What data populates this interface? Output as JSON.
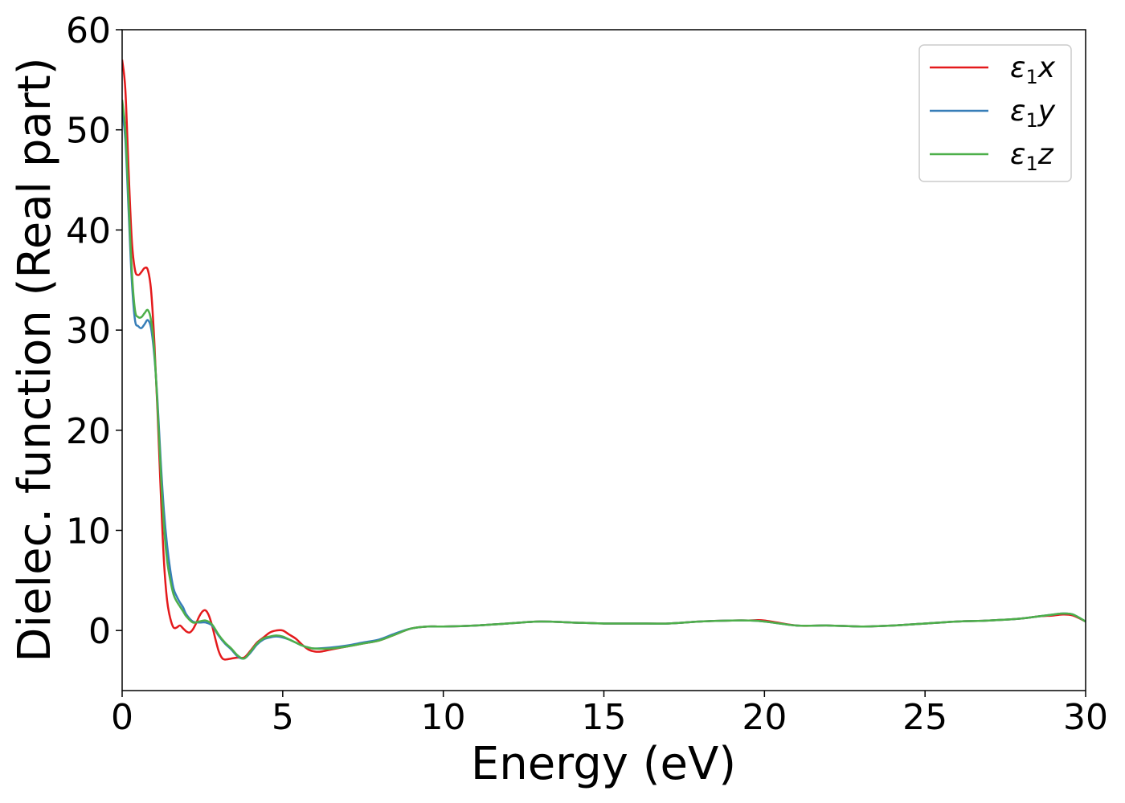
{
  "chart_data": {
    "type": "line",
    "title": "",
    "xlabel": "Energy (eV)",
    "ylabel": "Dielec. function (Real part)",
    "xlim": [
      0,
      30
    ],
    "ylim": [
      -6,
      60
    ],
    "xticks": [
      "0",
      "5",
      "10",
      "15",
      "20",
      "25",
      "30"
    ],
    "yticks": [
      "0",
      "10",
      "20",
      "30",
      "40",
      "50",
      "60"
    ],
    "grid": false,
    "legend_position": "top-right",
    "series": [
      {
        "name": "ε1x",
        "legend_base": "ε",
        "legend_sub": "1",
        "legend_suffix": "x",
        "color": "#e41a1c",
        "x": [
          0,
          0.1,
          0.2,
          0.3,
          0.4,
          0.5,
          0.6,
          0.7,
          0.8,
          0.9,
          1.0,
          1.1,
          1.2,
          1.3,
          1.4,
          1.5,
          1.6,
          1.7,
          1.8,
          1.9,
          2.0,
          2.1,
          2.2,
          2.3,
          2.4,
          2.5,
          2.6,
          2.7,
          2.8,
          2.9,
          3.0,
          3.1,
          3.2,
          3.4,
          3.6,
          3.8,
          4.0,
          4.2,
          4.4,
          4.6,
          4.8,
          5.0,
          5.2,
          5.4,
          5.6,
          5.8,
          6.0,
          6.2,
          6.5,
          7.0,
          7.5,
          8.0,
          8.5,
          9.0,
          9.5,
          10,
          11,
          12,
          13,
          14,
          15,
          16,
          17,
          18,
          19,
          19.5,
          20,
          21,
          22,
          23,
          24,
          25,
          26,
          27,
          28,
          28.5,
          29,
          29.3,
          29.6,
          30
        ],
        "values": [
          57,
          54,
          46,
          39,
          36,
          35.5,
          35.8,
          36.2,
          36,
          34,
          29,
          22,
          14,
          7,
          3,
          1.2,
          0.3,
          0.3,
          0.5,
          0.2,
          -0.1,
          -0.2,
          0.1,
          0.7,
          1.4,
          1.9,
          2.0,
          1.5,
          0.5,
          -0.8,
          -2.0,
          -2.7,
          -2.9,
          -2.8,
          -2.7,
          -2.7,
          -2.0,
          -1.2,
          -0.7,
          -0.2,
          0.0,
          0.0,
          -0.4,
          -0.8,
          -1.4,
          -1.9,
          -2.1,
          -2.1,
          -1.9,
          -1.6,
          -1.3,
          -1.0,
          -0.4,
          0.2,
          0.4,
          0.4,
          0.5,
          0.7,
          0.9,
          0.8,
          0.7,
          0.7,
          0.7,
          0.9,
          1.0,
          1.0,
          1.0,
          0.5,
          0.5,
          0.4,
          0.5,
          0.7,
          0.9,
          1.0,
          1.2,
          1.4,
          1.5,
          1.6,
          1.5,
          0.9
        ]
      },
      {
        "name": "ε1y",
        "legend_base": "ε",
        "legend_sub": "1",
        "legend_suffix": "y",
        "color": "#377eb8",
        "x": [
          0,
          0.1,
          0.2,
          0.3,
          0.4,
          0.5,
          0.6,
          0.7,
          0.8,
          0.9,
          1.0,
          1.1,
          1.2,
          1.3,
          1.4,
          1.5,
          1.6,
          1.7,
          1.8,
          1.9,
          2.0,
          2.2,
          2.4,
          2.6,
          2.8,
          3.0,
          3.2,
          3.4,
          3.6,
          3.8,
          4.0,
          4.2,
          4.4,
          4.6,
          4.8,
          5.0,
          5.2,
          5.4,
          5.6,
          5.8,
          6.0,
          6.5,
          7.0,
          7.5,
          8.0,
          8.5,
          9.0,
          9.5,
          10,
          11,
          12,
          13,
          14,
          15,
          16,
          17,
          18,
          19,
          19.5,
          20,
          21,
          22,
          23,
          24,
          25,
          26,
          27,
          28,
          28.5,
          29,
          29.3,
          29.6,
          30
        ],
        "values": [
          52,
          49,
          42,
          35,
          31,
          30.4,
          30.2,
          30.6,
          31,
          30.2,
          27.5,
          23,
          17,
          12,
          8.5,
          6,
          4.2,
          3.4,
          2.8,
          2.3,
          1.6,
          0.9,
          0.8,
          0.8,
          0.5,
          -0.5,
          -1.3,
          -1.9,
          -2.6,
          -2.8,
          -2.2,
          -1.4,
          -0.9,
          -0.7,
          -0.6,
          -0.7,
          -0.9,
          -1.2,
          -1.5,
          -1.7,
          -1.8,
          -1.7,
          -1.5,
          -1.2,
          -0.9,
          -0.3,
          0.2,
          0.4,
          0.4,
          0.5,
          0.7,
          0.9,
          0.8,
          0.7,
          0.7,
          0.7,
          0.9,
          1.0,
          1.0,
          0.9,
          0.5,
          0.5,
          0.4,
          0.5,
          0.7,
          0.9,
          1.0,
          1.2,
          1.4,
          1.6,
          1.7,
          1.6,
          0.9
        ]
      },
      {
        "name": "ε1z",
        "legend_base": "ε",
        "legend_sub": "1",
        "legend_suffix": "z",
        "color": "#4daf4a",
        "x": [
          0,
          0.1,
          0.2,
          0.3,
          0.4,
          0.5,
          0.6,
          0.7,
          0.8,
          0.9,
          1.0,
          1.1,
          1.2,
          1.3,
          1.4,
          1.5,
          1.6,
          1.7,
          1.8,
          1.9,
          2.0,
          2.2,
          2.4,
          2.6,
          2.8,
          3.0,
          3.2,
          3.4,
          3.6,
          3.8,
          4.0,
          4.2,
          4.4,
          4.6,
          4.8,
          5.0,
          5.2,
          5.4,
          5.6,
          5.8,
          6.0,
          6.5,
          7.0,
          7.5,
          8.0,
          8.5,
          9.0,
          9.5,
          10,
          11,
          12,
          13,
          14,
          15,
          16,
          17,
          18,
          19,
          19.5,
          20,
          21,
          22,
          23,
          24,
          25,
          26,
          27,
          28,
          28.5,
          29,
          29.3,
          29.6,
          30
        ],
        "values": [
          53,
          50,
          43,
          36,
          32,
          31.3,
          31.3,
          31.7,
          32,
          31,
          28,
          22.5,
          16,
          10.5,
          7,
          5,
          3.6,
          2.9,
          2.4,
          1.9,
          1.4,
          0.8,
          0.9,
          1.0,
          0.6,
          -0.4,
          -1.2,
          -1.8,
          -2.5,
          -2.8,
          -2.1,
          -1.3,
          -0.8,
          -0.6,
          -0.5,
          -0.6,
          -0.9,
          -1.2,
          -1.5,
          -1.7,
          -1.8,
          -1.8,
          -1.6,
          -1.3,
          -1.0,
          -0.4,
          0.2,
          0.4,
          0.4,
          0.5,
          0.7,
          0.9,
          0.8,
          0.7,
          0.7,
          0.7,
          0.9,
          1.0,
          1.0,
          0.9,
          0.5,
          0.5,
          0.4,
          0.5,
          0.7,
          0.9,
          1.0,
          1.2,
          1.4,
          1.6,
          1.7,
          1.6,
          0.9
        ]
      }
    ]
  }
}
